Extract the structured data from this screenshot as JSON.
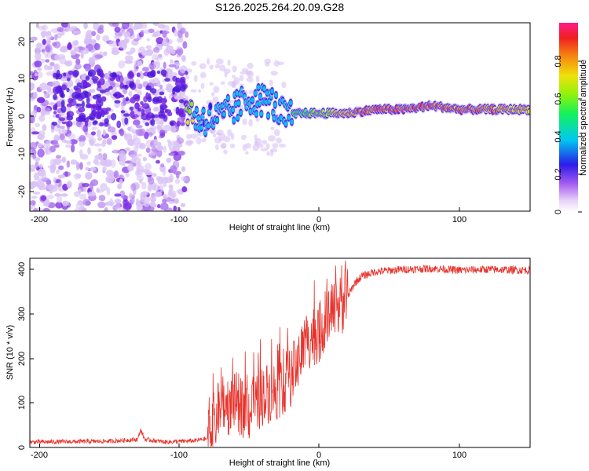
{
  "title": "S126.2025.264.20.09.G28",
  "chart_data": [
    {
      "type": "heatmap",
      "name": "spectrogram",
      "xlabel": "Height of straight line (km)",
      "ylabel": "Frequency (Hz)",
      "xlim": [
        -207,
        150
      ],
      "ylim": [
        -25,
        25
      ],
      "xticks": [
        -200,
        -100,
        0,
        100
      ],
      "yticks": [
        -20,
        -10,
        0,
        10,
        20
      ],
      "colorbar": {
        "label": "Normalized spectral amplitude",
        "range": [
          0,
          1
        ],
        "ticks": [
          0.0,
          0.2,
          0.4,
          0.6,
          0.8
        ]
      },
      "ridge": [
        {
          "x": -90,
          "y": -1,
          "amp": 0.3
        },
        {
          "x": -70,
          "y": 0,
          "amp": 0.3
        },
        {
          "x": -50,
          "y": 5,
          "amp": 0.35
        },
        {
          "x": -35,
          "y": 4,
          "amp": 0.3
        },
        {
          "x": -25,
          "y": 0,
          "amp": 0.35
        },
        {
          "x": -15,
          "y": 1,
          "amp": 0.5
        },
        {
          "x": 0,
          "y": 1,
          "amp": 0.6
        },
        {
          "x": 20,
          "y": 1,
          "amp": 0.8
        },
        {
          "x": 40,
          "y": 2,
          "amp": 0.9
        },
        {
          "x": 60,
          "y": 2,
          "amp": 0.9
        },
        {
          "x": 80,
          "y": 3,
          "amp": 0.9
        },
        {
          "x": 100,
          "y": 2,
          "amp": 0.85
        },
        {
          "x": 130,
          "y": 2,
          "amp": 0.8
        },
        {
          "x": 150,
          "y": 2,
          "amp": 0.7
        }
      ]
    },
    {
      "type": "line",
      "name": "snr",
      "xlabel": "Height of straight line (km)",
      "ylabel": "SNR (10 * v/v)",
      "xlim": [
        -207,
        150
      ],
      "ylim": [
        0,
        425
      ],
      "xticks": [
        -200,
        -100,
        0,
        100
      ],
      "yticks": [
        0,
        100,
        200,
        300,
        400
      ],
      "color": "#e8322b",
      "series": [
        {
          "name": "SNR",
          "x": [
            -207,
            -150,
            -130,
            -128,
            -125,
            -110,
            -90,
            -80,
            -75,
            -70,
            -60,
            -50,
            -40,
            -30,
            -20,
            -15,
            -10,
            -5,
            0,
            5,
            10,
            15,
            20,
            25,
            30,
            40,
            60,
            80,
            100,
            120,
            150
          ],
          "y": [
            12,
            14,
            18,
            40,
            18,
            12,
            15,
            20,
            60,
            90,
            100,
            80,
            120,
            130,
            160,
            200,
            240,
            250,
            260,
            290,
            300,
            320,
            340,
            370,
            385,
            395,
            400,
            402,
            398,
            400,
            398
          ]
        }
      ]
    }
  ]
}
